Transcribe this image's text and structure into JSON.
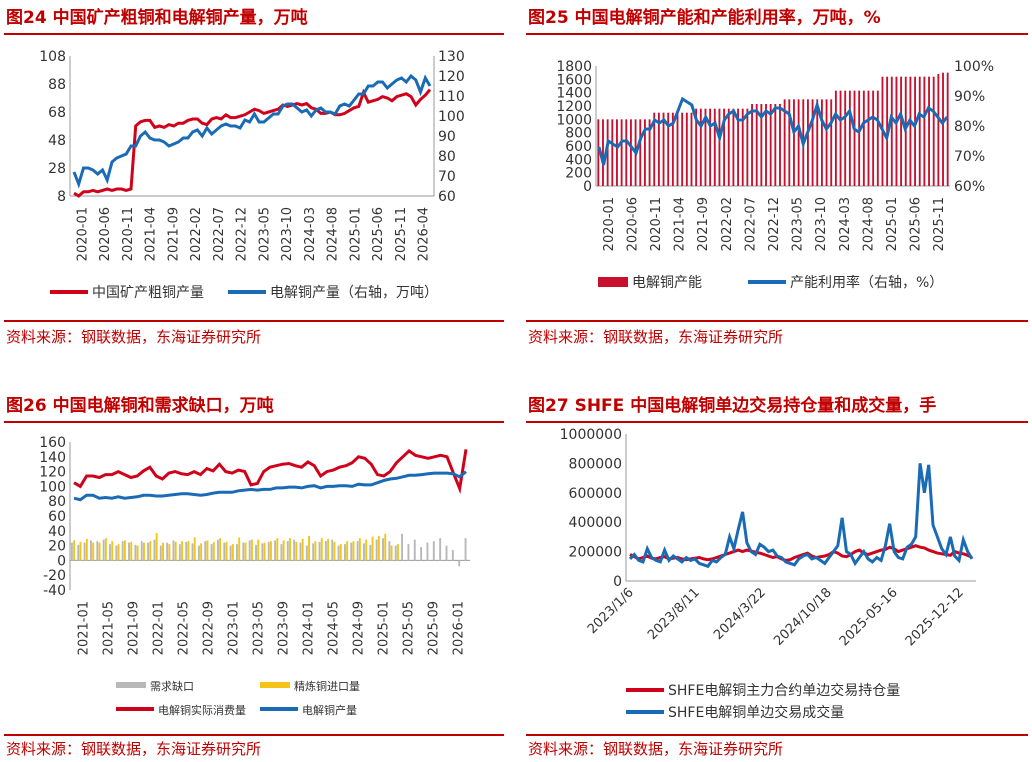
{
  "panels": [
    {
      "title": "图24  中国矿产粗铜和电解铜产量，万吨",
      "source": "资料来源：钢联数据，东海证券研究所"
    },
    {
      "title": "图25  中国电解铜产能和产能利用率，万吨，%",
      "source": "资料来源：钢联数据，东海证券研究所"
    },
    {
      "title": "图26  中国电解铜和需求缺口，万吨",
      "source": "资料来源：钢联数据，东海证券研究所"
    },
    {
      "title": "图27  SHFE 中国电解铜单边交易持仓量和成交量，手",
      "source": "资料来源：钢联数据，东海证券研究所"
    }
  ],
  "chart_data": [
    {
      "type": "line",
      "x_ticks": [
        "2020-01",
        "2020-06",
        "2020-11",
        "2021-04",
        "2021-09",
        "2022-02",
        "2022-07",
        "2022-12",
        "2023-05",
        "2023-10",
        "2024-03",
        "2024-08",
        "2025-01",
        "2025-06",
        "2025-11",
        "2026-04"
      ],
      "x_count": 76,
      "y_left": {
        "ylim": [
          8,
          108
        ],
        "ticks": [
          8,
          28,
          48,
          68,
          88,
          108
        ]
      },
      "y_right": {
        "ylim": [
          60,
          130
        ],
        "ticks": [
          60,
          70,
          80,
          90,
          100,
          110,
          120,
          130
        ]
      },
      "series": [
        {
          "name": "中国矿产粗铜产量",
          "axis": "left",
          "color": "#d0021b",
          "values": [
            10,
            8,
            11,
            11,
            12,
            11,
            12,
            13,
            12,
            13,
            13,
            12,
            13,
            58,
            61,
            62,
            62,
            57,
            58,
            57,
            59,
            58,
            60,
            60,
            62,
            63,
            63,
            60,
            59,
            63,
            64,
            63,
            66,
            64,
            64,
            65,
            66,
            68,
            70,
            69,
            67,
            68,
            69,
            70,
            73,
            72,
            73,
            74,
            73,
            74,
            71,
            70,
            67,
            67,
            68,
            66,
            66,
            67,
            69,
            71,
            72,
            82,
            75,
            76,
            77,
            79,
            78,
            76,
            79,
            80,
            81,
            79,
            73,
            77,
            80,
            84
          ]
        },
        {
          "name": "电解铜产量（右轴，万吨）",
          "axis": "right",
          "color": "#1a6bb5",
          "values": [
            72,
            66,
            74,
            74,
            73,
            71,
            73,
            68,
            77,
            79,
            80,
            81,
            85,
            85,
            90,
            92,
            89,
            88,
            88,
            87,
            85,
            86,
            87,
            89,
            89,
            92,
            93,
            90,
            94,
            91,
            93,
            95,
            96,
            95,
            95,
            94,
            98,
            97,
            101,
            97,
            97,
            99,
            101,
            101,
            105,
            106,
            106,
            104,
            102,
            103,
            100,
            103,
            104,
            102,
            102,
            101,
            105,
            106,
            105,
            108,
            111,
            111,
            115,
            115,
            117,
            117,
            114,
            116,
            118,
            119,
            117,
            120,
            118,
            112,
            119,
            115
          ]
        }
      ]
    },
    {
      "type": "bar+line",
      "x_ticks": [
        "2020-01",
        "2020-06",
        "2020-11",
        "2021-04",
        "2021-09",
        "2022-02",
        "2022-07",
        "2022-12",
        "2023-05",
        "2023-10",
        "2024-03",
        "2024-08",
        "2025-01",
        "2025-06",
        "2025-11"
      ],
      "x_count": 76,
      "y_left": {
        "ylim": [
          0,
          1800
        ],
        "ticks": [
          0,
          200,
          400,
          600,
          800,
          1000,
          1200,
          1400,
          1600,
          1800
        ]
      },
      "y_right": {
        "ylim": [
          60,
          100
        ],
        "ticks": [
          "60%",
          "70%",
          "80%",
          "90%",
          "100%"
        ]
      },
      "series": [
        {
          "name": "电解铜产能",
          "type": "bar",
          "axis": "left",
          "color": "#c8102e",
          "values": [
            1000,
            1000,
            1000,
            1000,
            1000,
            1000,
            1000,
            1000,
            1000,
            1000,
            1000,
            1000,
            1100,
            1100,
            1100,
            1100,
            1100,
            1100,
            1100,
            1100,
            1100,
            1160,
            1160,
            1160,
            1160,
            1160,
            1160,
            1160,
            1160,
            1160,
            1160,
            1160,
            1160,
            1230,
            1230,
            1230,
            1230,
            1230,
            1230,
            1230,
            1300,
            1300,
            1300,
            1300,
            1300,
            1300,
            1300,
            1300,
            1300,
            1300,
            1300,
            1430,
            1430,
            1430,
            1430,
            1430,
            1430,
            1430,
            1430,
            1430,
            1430,
            1640,
            1640,
            1640,
            1640,
            1640,
            1640,
            1640,
            1640,
            1640,
            1640,
            1640,
            1640,
            1680,
            1700,
            1700
          ]
        },
        {
          "name": "产能利用率（右轴，%）",
          "type": "line",
          "axis": "right",
          "color": "#1a6bb5",
          "values": [
            73,
            67,
            75,
            74,
            73,
            75,
            75,
            73,
            71,
            76,
            79,
            79,
            82,
            81,
            82,
            80,
            81,
            85,
            89,
            88,
            87,
            82,
            80,
            83,
            80,
            81,
            76,
            82,
            84,
            85,
            82,
            82,
            84,
            85,
            85,
            83,
            85,
            84,
            86,
            86,
            85,
            84,
            78,
            80,
            74,
            78,
            82,
            87,
            82,
            79,
            81,
            84,
            82,
            83,
            85,
            79,
            78,
            81,
            82,
            83,
            82,
            79,
            76,
            83,
            81,
            84,
            79,
            82,
            80,
            84,
            83,
            86,
            85,
            83,
            81,
            83
          ]
        }
      ]
    },
    {
      "type": "bar+line",
      "x_ticks": [
        "2021-01",
        "2021-05",
        "2021-09",
        "2022-01",
        "2022-05",
        "2022-09",
        "2023-01",
        "2023-05",
        "2023-09",
        "2024-01",
        "2024-05",
        "2024-09",
        "2025-01",
        "2025-05",
        "2025-09",
        "2026-01"
      ],
      "x_count": 63,
      "ylim": [
        -40,
        160
      ],
      "y_ticks": [
        -40,
        -20,
        0,
        20,
        40,
        60,
        80,
        100,
        120,
        140,
        160
      ],
      "series": [
        {
          "name": "需求缺口",
          "type": "bar",
          "color": "#b8b8b8",
          "values": [
            24,
            21,
            24,
            27,
            26,
            28,
            22,
            20,
            26,
            24,
            21,
            26,
            24,
            28,
            20,
            24,
            27,
            22,
            25,
            23,
            20,
            26,
            22,
            28,
            24,
            20,
            22,
            24,
            27,
            21,
            23,
            25,
            27,
            22,
            26,
            28,
            24,
            20,
            23,
            25,
            26,
            28,
            20,
            22,
            24,
            26,
            23,
            21,
            28,
            30,
            26,
            20,
            36,
            22,
            28,
            18,
            24,
            26,
            30,
            20,
            14,
            -8,
            30
          ]
        },
        {
          "name": "精炼铜进口量",
          "type": "bar",
          "color": "#f4c518",
          "values": [
            27,
            25,
            29,
            24,
            24,
            30,
            26,
            22,
            27,
            25,
            20,
            24,
            26,
            37,
            24,
            22,
            25,
            26,
            26,
            31,
            23,
            27,
            25,
            30,
            25,
            22,
            31,
            24,
            28,
            28,
            24,
            26,
            30,
            27,
            30,
            25,
            29,
            33,
            26,
            30,
            29,
            25,
            22,
            26,
            26,
            30,
            28,
            32,
            33,
            36,
            20,
            22,
            0,
            0,
            0,
            0,
            0,
            0,
            0,
            0,
            0,
            0,
            0
          ]
        },
        {
          "name": "电解铜实际消费量",
          "type": "line",
          "color": "#d0021b",
          "values": [
            105,
            100,
            114,
            114,
            112,
            116,
            116,
            120,
            116,
            112,
            114,
            121,
            126,
            114,
            110,
            118,
            120,
            117,
            116,
            120,
            116,
            124,
            121,
            130,
            120,
            118,
            122,
            120,
            102,
            104,
            120,
            126,
            128,
            130,
            131,
            128,
            126,
            133,
            128,
            114,
            120,
            122,
            126,
            128,
            132,
            140,
            138,
            130,
            116,
            114,
            120,
            132,
            140,
            148,
            142,
            140,
            138,
            140,
            142,
            140,
            118,
            97,
            150
          ]
        },
        {
          "name": "电解铜产量",
          "type": "line",
          "color": "#1a6bb5",
          "values": [
            84,
            82,
            88,
            88,
            84,
            85,
            84,
            86,
            84,
            85,
            86,
            88,
            88,
            87,
            87,
            88,
            89,
            90,
            90,
            89,
            88,
            89,
            91,
            92,
            92,
            92,
            94,
            95,
            96,
            95,
            96,
            96,
            98,
            98,
            99,
            99,
            98,
            100,
            101,
            98,
            100,
            100,
            101,
            101,
            100,
            103,
            102,
            102,
            105,
            108,
            110,
            111,
            113,
            115,
            115,
            116,
            117,
            118,
            118,
            118,
            117,
            113,
            120
          ]
        }
      ]
    },
    {
      "type": "line",
      "x_ticks": [
        "2023/1/6",
        "2023/8/11",
        "2024/3/22",
        "2024/10/18",
        "2025-05-16",
        "2025-12-12"
      ],
      "x_count": 80,
      "ylim": [
        0,
        1000000
      ],
      "y_ticks": [
        0,
        200000,
        400000,
        600000,
        800000,
        1000000
      ],
      "series": [
        {
          "name": "SHFE电解铜主力合约单边交易持仓量",
          "color": "#d0021b",
          "values": [
            180000,
            165000,
            150000,
            160000,
            170000,
            155000,
            150000,
            160000,
            165000,
            150000,
            155000,
            160000,
            150000,
            145000,
            150000,
            155000,
            160000,
            150000,
            145000,
            150000,
            160000,
            170000,
            180000,
            190000,
            200000,
            210000,
            200000,
            210000,
            205000,
            195000,
            190000,
            180000,
            170000,
            160000,
            165000,
            150000,
            140000,
            145000,
            160000,
            170000,
            180000,
            190000,
            170000,
            160000,
            165000,
            170000,
            180000,
            200000,
            190000,
            170000,
            165000,
            180000,
            200000,
            210000,
            190000,
            180000,
            190000,
            200000,
            210000,
            215000,
            230000,
            220000,
            200000,
            210000,
            220000,
            230000,
            240000,
            230000,
            225000,
            210000,
            200000,
            190000,
            185000,
            180000,
            175000,
            200000,
            190000,
            185000,
            175000,
            160000
          ]
        },
        {
          "name": "SHFE电解铜单边交易成交量",
          "color": "#1a6bb5",
          "values": [
            150000,
            180000,
            140000,
            130000,
            220000,
            160000,
            140000,
            130000,
            210000,
            140000,
            170000,
            150000,
            130000,
            160000,
            140000,
            150000,
            120000,
            110000,
            100000,
            140000,
            130000,
            160000,
            180000,
            300000,
            220000,
            350000,
            470000,
            260000,
            200000,
            180000,
            250000,
            230000,
            200000,
            210000,
            170000,
            160000,
            130000,
            120000,
            110000,
            150000,
            170000,
            180000,
            150000,
            160000,
            140000,
            120000,
            160000,
            200000,
            240000,
            430000,
            200000,
            180000,
            120000,
            160000,
            200000,
            150000,
            130000,
            160000,
            140000,
            240000,
            390000,
            200000,
            160000,
            150000,
            230000,
            250000,
            300000,
            800000,
            600000,
            790000,
            380000,
            300000,
            220000,
            180000,
            300000,
            170000,
            140000,
            280000,
            200000,
            150000
          ]
        }
      ]
    }
  ]
}
